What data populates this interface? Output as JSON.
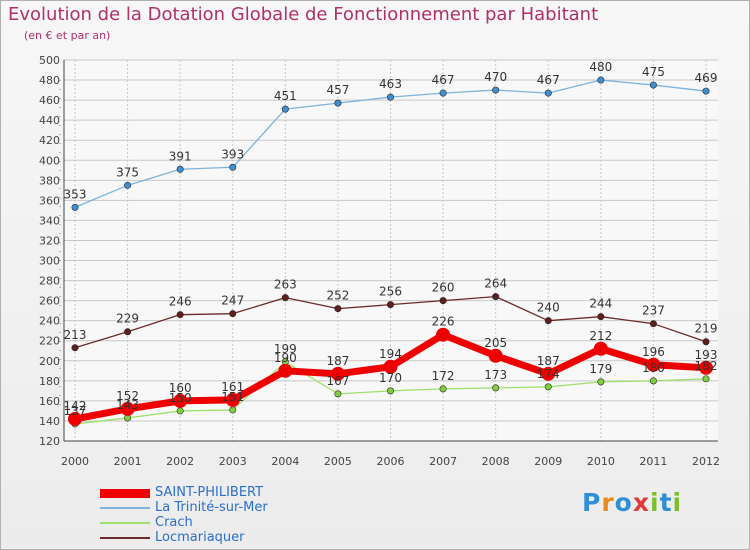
{
  "title": "Evolution de la Dotation Globale de Fonctionnement par Habitant",
  "subtitle": "(en € et par an)",
  "logo": {
    "letters": [
      "P",
      "r",
      "o",
      "x",
      "i",
      "t",
      "i"
    ],
    "colors": [
      "#2f8fd6",
      "#e98a1f",
      "#2f8fd6",
      "#e23a3a",
      "#7cbf2a",
      "#2f8fd6",
      "#7cbf2a"
    ]
  },
  "chart_data": {
    "type": "line",
    "title": "Evolution de la Dotation Globale de Fonctionnement par Habitant",
    "ylabel": "(en € et par an)",
    "xlabel": "",
    "categories": [
      "2000",
      "2001",
      "2002",
      "2003",
      "2004",
      "2005",
      "2006",
      "2007",
      "2008",
      "2009",
      "2010",
      "2011",
      "2012"
    ],
    "ylim": [
      120,
      500
    ],
    "yticks": [
      "120",
      "140",
      "160",
      "180",
      "200",
      "220",
      "240",
      "260",
      "280",
      "300",
      "320",
      "340",
      "360",
      "380",
      "400",
      "420",
      "440",
      "460",
      "480",
      "500"
    ],
    "grid": true,
    "series": [
      {
        "name": "SAINT-PHILIBERT",
        "color": "#ee0000",
        "markerColor": "#ee0000",
        "width": "thick",
        "values": [
          142,
          152,
          160,
          161,
          190,
          187,
          194,
          226,
          205,
          187,
          212,
          196,
          193
        ],
        "labels": [
          "142",
          "152",
          "160",
          "161",
          "190",
          "187",
          "194",
          "226",
          "205",
          "187",
          "212",
          "196",
          "193"
        ]
      },
      {
        "name": "La Trinité-sur-Mer",
        "color": "#7eb3de",
        "markerColor": "#3f8fd0",
        "width": "thin",
        "values": [
          353,
          375,
          391,
          393,
          451,
          457,
          463,
          467,
          470,
          467,
          480,
          475,
          469
        ],
        "labels": [
          "353",
          "375",
          "391",
          "393",
          "451",
          "457",
          "463",
          "467",
          "470",
          "467",
          "480",
          "475",
          "469"
        ]
      },
      {
        "name": "Crach",
        "color": "#9ee06e",
        "markerColor": "#7fce3e",
        "width": "thin",
        "values": [
          137,
          143,
          150,
          151,
          199,
          167,
          170,
          172,
          173,
          174,
          179,
          180,
          182
        ],
        "labels": [
          "137",
          "143",
          "150",
          "151",
          "199",
          "167",
          "170",
          "172",
          "173",
          "174",
          "179",
          "180",
          "182"
        ]
      },
      {
        "name": "Locmariaquer",
        "color": "#6e2a2a",
        "markerColor": "#5e1f1f",
        "width": "thin",
        "values": [
          213,
          229,
          246,
          247,
          263,
          252,
          256,
          260,
          264,
          240,
          244,
          237,
          219
        ],
        "labels": [
          "213",
          "229",
          "246",
          "247",
          "263",
          "252",
          "256",
          "260",
          "264",
          "240",
          "244",
          "237",
          "219"
        ]
      }
    ],
    "legend": "bottom-left"
  }
}
